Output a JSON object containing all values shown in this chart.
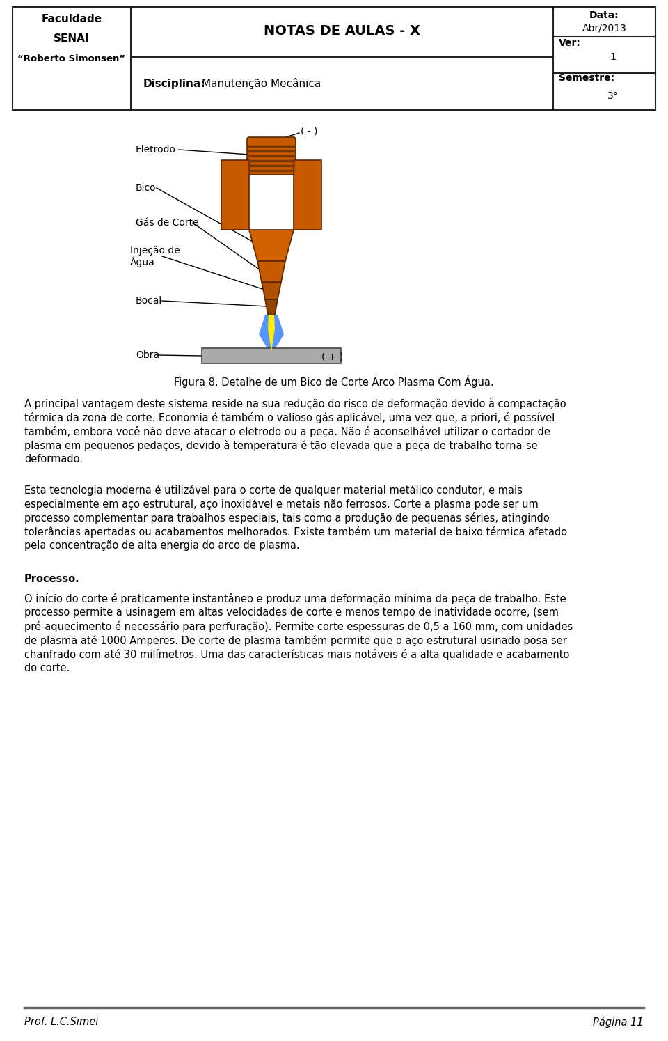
{
  "header": {
    "left_line1": "Faculdade",
    "left_line2": "SENAI",
    "left_line3": "“Roberto Simonsen”",
    "center": "NOTAS DE AULAS - X",
    "right_data_label": "Data:",
    "right_data_value": "Abr/2013",
    "right_ver_label": "Ver:",
    "right_ver_value": "1",
    "right_sem_label": "Semestre:",
    "right_sem_value": "3°",
    "disciplina_label": "Disciplina:",
    "disciplina_value": "Manutenção Mecânica"
  },
  "figure_caption": "Figura 8. Detalhe de um Bico de Corte Arco Plasma Com Água.",
  "diagram_labels": {
    "minus": "( - )",
    "eletrodo": "Eletrodo",
    "bico": "Bico",
    "gas": "Gás de Corte",
    "injec_line1": "Injeção de",
    "injec_line2": "Água",
    "bocal": "Bocal",
    "obra": "Obra",
    "plus": "( + )"
  },
  "paragraphs": [
    "A principal vantagem deste sistema reside na sua redução do risco de deformação devido à compactação térmica da zona de corte. Economia é também o valioso gás aplicável, uma vez que, a priori, é possível também, embora você não deve atacar o eletrodo ou a peça. Não é aconselhável utilizar o cortador de plasma em pequenos pedaços, devido à temperatura é tão elevada que a peça de trabalho torna-se deformado.",
    "Esta tecnologia moderna é utilizável para o corte de qualquer material metálico condutor, e mais especialmente em aço estrutural, aço inoxidável e metais não ferrosos. Corte a plasma pode ser um processo complementar para trabalhos especiais, tais como a produção de pequenas séries, atingindo tolerâncias apertadas ou acabamentos melhorados. Existe também um material de baixo térmica afetado pela concentração de alta energia do arco de plasma."
  ],
  "processo_title": "Processo.",
  "processo_paragraph": "O início do corte é praticamente instantâneo e produz uma deformação mínima da peça de trabalho. Este processo permite a usinagem em altas velocidades de corte e menos tempo de inatividade ocorre, (sem pré-aquecimento é necessário para perfuração). Permite corte espessuras de 0,5 a 160 mm, com unidades de plasma até 1000 Amperes. De corte de plasma também permite que o aço estrutural usinado posa ser chanfrado com até 30 milímetros. Uma das características mais notáveis é a alta qualidade e acabamento do corte.",
  "footer_left": "Prof. L.C.Simei",
  "footer_right": "Página 11",
  "bg_color": "#ffffff",
  "text_color": "#000000",
  "elec_color": "#c85a00",
  "flame_blue": "#4488ff",
  "flame_yellow": "#ffee00",
  "work_gray": "#aaaaaa"
}
